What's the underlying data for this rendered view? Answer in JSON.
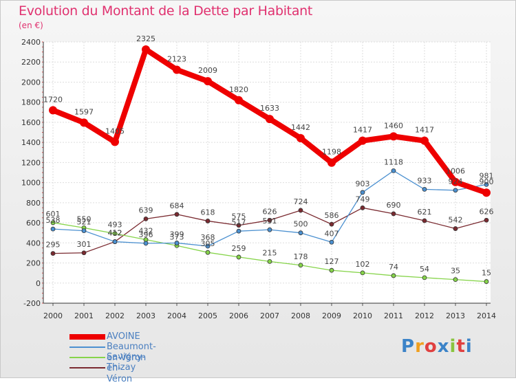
{
  "title": "Evolution du Montant de la Dette par Habitant",
  "subtitle": "(en €)",
  "logo": {
    "text": "Proxiti",
    "colors": [
      "#3b83c8",
      "#f0a020",
      "#e04040",
      "#3b83c8",
      "#8ac43f",
      "#e04040",
      "#3b83c8"
    ]
  },
  "chart_data": {
    "type": "line",
    "title": "Evolution du Montant de la Dette par Habitant",
    "ylabel": "(en €)",
    "xlabel": "",
    "ylim": [
      -200,
      2400
    ],
    "yticks": [
      -200,
      0,
      200,
      400,
      600,
      800,
      1000,
      1200,
      1400,
      1600,
      1800,
      2000,
      2200,
      2400
    ],
    "grid": true,
    "legend": "bottom-left",
    "x": [
      "2000",
      "2001",
      "2002",
      "2003",
      "2004",
      "2005",
      "2006",
      "2007",
      "2008",
      "2009",
      "2010",
      "2011",
      "2012",
      "2013",
      "2014"
    ],
    "series": [
      {
        "name": "AVOINE",
        "color": "#ee0000",
        "values": [
          1720,
          1597,
          1405,
          2325,
          2123,
          2009,
          1820,
          1633,
          1442,
          1198,
          1417,
          1460,
          1417,
          1006,
          900
        ]
      },
      {
        "name": "Beaumont-en-Véron",
        "color": "#4b90d0",
        "values": [
          538,
          521,
          412,
          396,
          399,
          368,
          517,
          531,
          500,
          407,
          903,
          1118,
          933,
          924,
          981
        ]
      },
      {
        "name": "Savigny-en-Véron",
        "color": "#86d44a",
        "values": [
          601,
          550,
          493,
          432,
          373,
          305,
          259,
          215,
          178,
          127,
          102,
          74,
          54,
          35,
          15
        ]
      },
      {
        "name": "Thizay",
        "color": "#7a2a30",
        "values": [
          295,
          301,
          412,
          639,
          684,
          618,
          575,
          626,
          724,
          586,
          749,
          690,
          621,
          542,
          626
        ]
      }
    ]
  }
}
